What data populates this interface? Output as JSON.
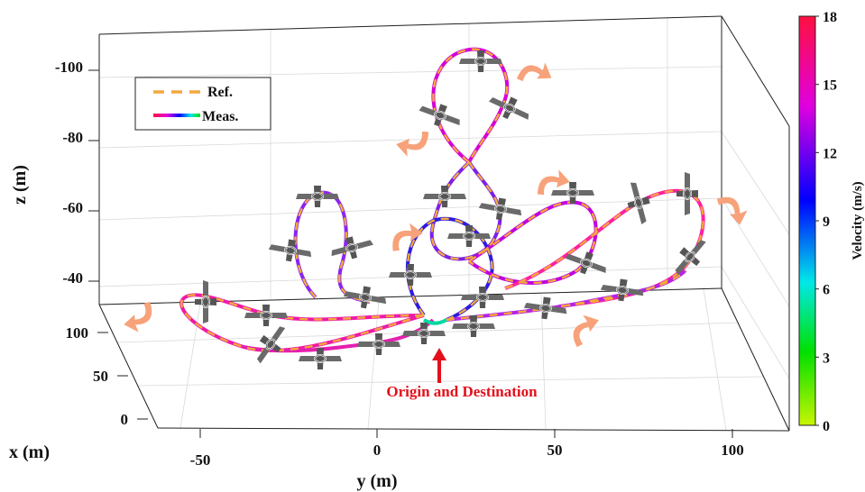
{
  "chart_data": {
    "type": "line",
    "projection": "3d",
    "axes": {
      "x": {
        "label": "x (m)",
        "ticks": [
          0,
          50,
          100
        ]
      },
      "y": {
        "label": "y (m)",
        "ticks": [
          -50,
          0,
          50,
          100
        ]
      },
      "z": {
        "label": "z (m)",
        "ticks": [
          -100,
          -80,
          -60,
          -40
        ],
        "reversed": true
      }
    },
    "legend": {
      "placement": "top-left",
      "entries": [
        {
          "label": "Ref.",
          "style": "dashed",
          "color": "#f2a93b"
        },
        {
          "label": "Meas.",
          "style": "gradient",
          "color": "velocity-colormap"
        }
      ]
    },
    "colorbar": {
      "label": "Velocity (m/s)",
      "range": [
        0,
        18
      ],
      "ticks": [
        0,
        3,
        6,
        9,
        12,
        15,
        18
      ],
      "colormap": [
        "#c8f500",
        "#00e000",
        "#00e8e8",
        "#0000ff",
        "#e000e0",
        "#ff1040"
      ]
    },
    "annotation": {
      "text": "Origin and Destination",
      "color": "#e3101a"
    },
    "arrow_color": "#f7a27a",
    "aircraft_color": "#6a6a6a",
    "grid": true
  }
}
